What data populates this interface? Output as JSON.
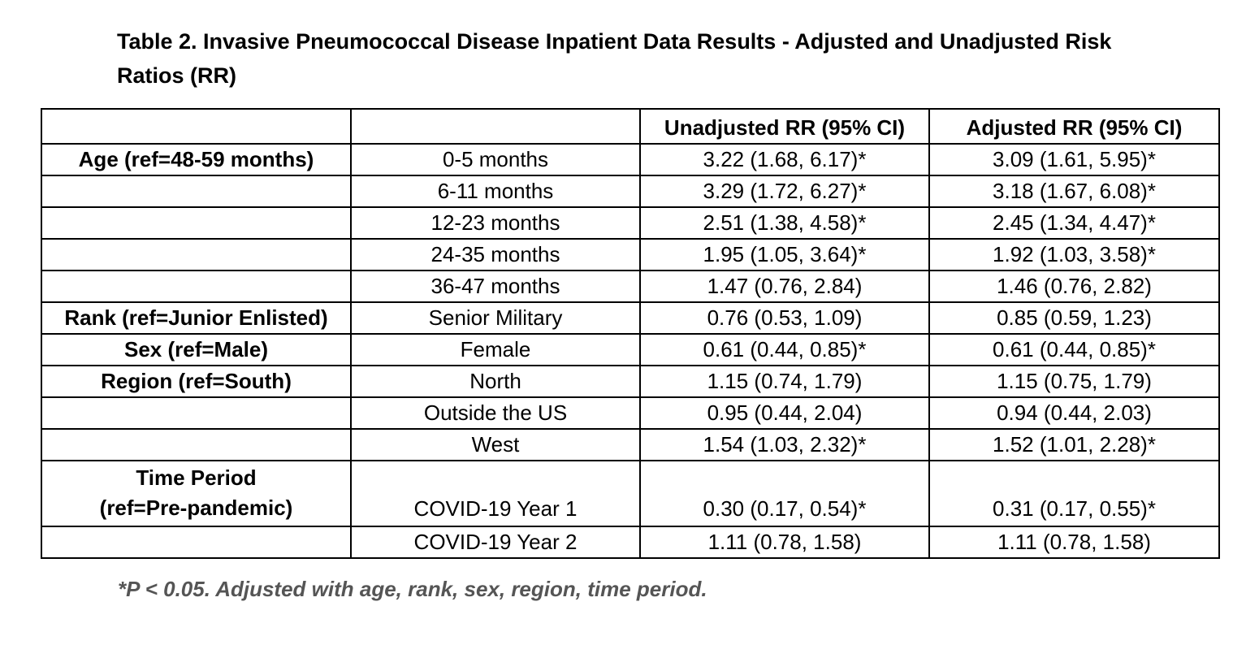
{
  "title": "Table 2. Invasive Pneumococcal Disease Inpatient Data Results - Adjusted and Unadjusted Risk Ratios (RR)",
  "columns": [
    "",
    "",
    "Unadjusted RR (95% CI)",
    "Adjusted RR (95% CI)"
  ],
  "rows": [
    {
      "group": "Age (ref=48-59 months)",
      "level": "0-5 months",
      "unadjusted": "3.22 (1.68, 6.17)*",
      "adjusted": "3.09 (1.61, 5.95)*"
    },
    {
      "group": "",
      "level": "6-11 months",
      "unadjusted": "3.29 (1.72, 6.27)*",
      "adjusted": "3.18 (1.67, 6.08)*"
    },
    {
      "group": "",
      "level": "12-23 months",
      "unadjusted": "2.51 (1.38, 4.58)*",
      "adjusted": "2.45 (1.34, 4.47)*"
    },
    {
      "group": "",
      "level": "24-35 months",
      "unadjusted": "1.95 (1.05, 3.64)*",
      "adjusted": "1.92 (1.03, 3.58)*"
    },
    {
      "group": "",
      "level": "36-47 months",
      "unadjusted": "1.47 (0.76, 2.84)",
      "adjusted": "1.46 (0.76, 2.82)"
    },
    {
      "group": "Rank (ref=Junior Enlisted)",
      "level": "Senior Military",
      "unadjusted": "0.76 (0.53, 1.09)",
      "adjusted": "0.85 (0.59, 1.23)"
    },
    {
      "group": "Sex (ref=Male)",
      "level": "Female",
      "unadjusted": "0.61 (0.44, 0.85)*",
      "adjusted": "0.61 (0.44, 0.85)*"
    },
    {
      "group": "Region (ref=South)",
      "level": "North",
      "unadjusted": "1.15 (0.74, 1.79)",
      "adjusted": "1.15 (0.75, 1.79)"
    },
    {
      "group": "",
      "level": "Outside the US",
      "unadjusted": "0.95 (0.44, 2.04)",
      "adjusted": "0.94 (0.44, 2.03)"
    },
    {
      "group": "",
      "level": "West",
      "unadjusted": "1.54 (1.03, 2.32)*",
      "adjusted": "1.52 (1.01, 2.28)*"
    },
    {
      "group_line1": "Time Period",
      "group_line2": "(ref=Pre-pandemic)",
      "level": "COVID-19 Year 1",
      "unadjusted": "0.30 (0.17, 0.54)*",
      "adjusted": "0.31 (0.17, 0.55)*"
    },
    {
      "group": "",
      "level": "COVID-19 Year 2",
      "unadjusted": "1.11 (0.78, 1.58)",
      "adjusted": "1.11 (0.78, 1.58)"
    }
  ],
  "footnote": "*P < 0.05.  Adjusted with age, rank, sex, region, time period."
}
